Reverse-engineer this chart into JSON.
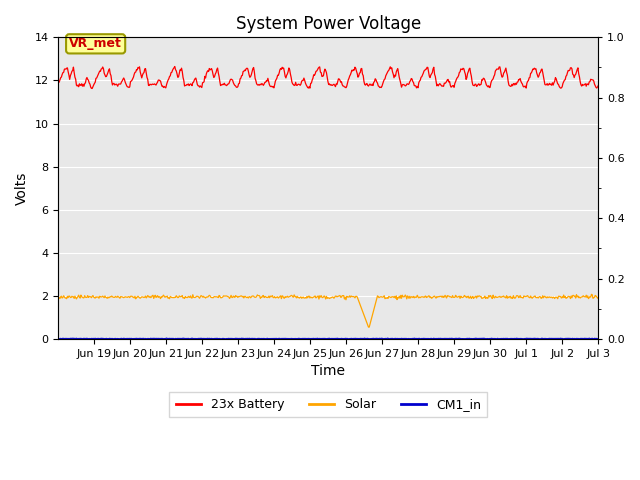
{
  "title": "System Power Voltage",
  "xlabel": "Time",
  "ylabel": "Volts",
  "ylim_left": [
    0,
    14
  ],
  "ylim_right": [
    0.0,
    1.0
  ],
  "yticks_left": [
    0,
    2,
    4,
    6,
    8,
    10,
    12,
    14
  ],
  "yticks_right": [
    0.0,
    0.2,
    0.4,
    0.6,
    0.8,
    1.0
  ],
  "x_labels": [
    "Jun 19",
    "Jun 20",
    "Jun 21",
    "Jun 22",
    "Jun 23",
    "Jun 24",
    "Jun 25",
    "Jun 26",
    "Jun 27",
    "Jun 28",
    "Jun 29",
    "Jun 30",
    "Jul 1",
    "Jul 2",
    "Jul 3"
  ],
  "x_tick_positions": [
    1,
    2,
    3,
    4,
    5,
    6,
    7,
    8,
    9,
    10,
    11,
    12,
    13,
    14,
    15
  ],
  "xlim": [
    0,
    15
  ],
  "plot_bg": "#e8e8e8",
  "fig_bg": "#ffffff",
  "grid_color": "#ffffff",
  "battery_color": "#ff0000",
  "solar_color": "#ffa500",
  "cm1_color": "#0000cd",
  "legend_labels": [
    "23x Battery",
    "Solar",
    "CM1_in"
  ],
  "vr_met_label": "VR_met",
  "vr_met_bg": "#ffff99",
  "vr_met_border": "#999900",
  "title_fontsize": 12,
  "axis_fontsize": 10,
  "tick_fontsize": 8,
  "legend_fontsize": 9
}
